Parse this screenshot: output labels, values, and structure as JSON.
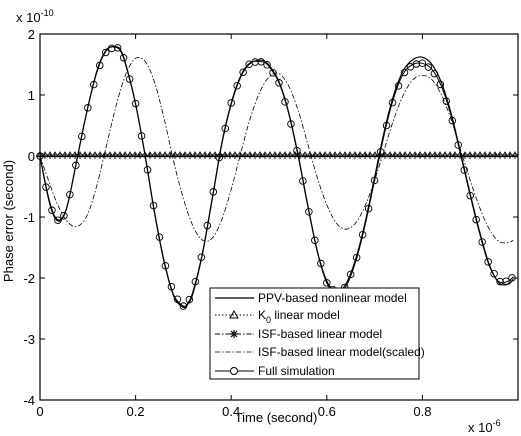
{
  "chart_data": {
    "type": "line",
    "xlabel": "Time (second)",
    "ylabel": "Phase error (second)",
    "x_exponent_label": "x 10",
    "x_exponent": "-6",
    "y_exponent_label": "x 10",
    "y_exponent": "-10",
    "xlim": [
      0,
      1.0
    ],
    "ylim": [
      -4,
      2
    ],
    "xticks": [
      0,
      0.2,
      0.4,
      0.6,
      0.8
    ],
    "xtick_labels": [
      "0",
      "0.2",
      "0.4",
      "0.6",
      "0.8"
    ],
    "yticks": [
      -4,
      -3,
      -2,
      -1,
      0,
      1,
      2
    ],
    "ytick_labels": [
      "-4",
      "-3",
      "-2",
      "-1",
      "0",
      "1",
      "2"
    ],
    "grid": false,
    "legend_position": "bottom-right",
    "series": [
      {
        "name": "PPV-based nonlinear model",
        "style": "solid",
        "x": [
          0,
          0.01,
          0.02,
          0.03,
          0.04,
          0.05,
          0.06,
          0.08,
          0.1,
          0.12,
          0.14,
          0.16,
          0.17,
          0.18,
          0.2,
          0.22,
          0.24,
          0.26,
          0.28,
          0.3,
          0.31,
          0.32,
          0.34,
          0.36,
          0.38,
          0.4,
          0.42,
          0.44,
          0.46,
          0.47,
          0.48,
          0.5,
          0.52,
          0.54,
          0.56,
          0.58,
          0.6,
          0.62,
          0.64,
          0.66,
          0.68,
          0.7,
          0.72,
          0.74,
          0.76,
          0.78,
          0.8,
          0.82,
          0.84,
          0.86,
          0.88,
          0.9,
          0.92,
          0.94,
          0.96,
          0.98,
          0.99
        ],
        "y": [
          0,
          -0.4,
          -0.75,
          -0.98,
          -1.05,
          -0.97,
          -0.72,
          0.05,
          0.8,
          1.42,
          1.75,
          1.78,
          1.7,
          1.48,
          0.85,
          0.0,
          -0.95,
          -1.75,
          -2.3,
          -2.48,
          -2.42,
          -2.25,
          -1.6,
          -0.72,
          0.18,
          0.85,
          1.3,
          1.52,
          1.57,
          1.55,
          1.48,
          1.22,
          0.72,
          0.02,
          -0.8,
          -1.55,
          -2.05,
          -2.22,
          -2.1,
          -1.7,
          -1.1,
          -0.35,
          0.4,
          1.0,
          1.4,
          1.58,
          1.62,
          1.5,
          1.2,
          0.7,
          0.05,
          -0.62,
          -1.25,
          -1.78,
          -2.08,
          -2.1,
          -2.02
        ]
      },
      {
        "name": "K0 linear model",
        "legend_label": "K",
        "legend_subscript": "0",
        "legend_suffix": " linear model",
        "style": "dotted-triangle",
        "x": [
          0,
          0.1,
          0.2,
          0.3,
          0.4,
          0.5,
          0.6,
          0.7,
          0.8,
          0.9,
          1.0
        ],
        "y": [
          0.02,
          0.02,
          0.02,
          0.02,
          0.02,
          0.02,
          0.02,
          0.02,
          0.02,
          0.02,
          0.02
        ]
      },
      {
        "name": "ISF-based linear model",
        "style": "dashdot-star",
        "x": [
          0,
          0.1,
          0.2,
          0.3,
          0.4,
          0.5,
          0.6,
          0.7,
          0.8,
          0.9,
          1.0
        ],
        "y": [
          0.0,
          0.0,
          0.0,
          0.0,
          0.0,
          0.0,
          0.0,
          0.0,
          0.0,
          0.0,
          0.0
        ]
      },
      {
        "name": "ISF-based linear model(scaled)",
        "style": "dashdot",
        "x": [
          0,
          0.02,
          0.04,
          0.06,
          0.08,
          0.1,
          0.12,
          0.14,
          0.16,
          0.18,
          0.2,
          0.22,
          0.24,
          0.26,
          0.28,
          0.3,
          0.32,
          0.34,
          0.36,
          0.38,
          0.4,
          0.42,
          0.44,
          0.46,
          0.48,
          0.5,
          0.52,
          0.54,
          0.56,
          0.58,
          0.6,
          0.62,
          0.64,
          0.66,
          0.68,
          0.7,
          0.72,
          0.74,
          0.76,
          0.78,
          0.8,
          0.82,
          0.84,
          0.86,
          0.88,
          0.9,
          0.92,
          0.94,
          0.96,
          0.98,
          0.99
        ],
        "y": [
          0,
          -0.45,
          -0.85,
          -1.1,
          -1.15,
          -0.95,
          -0.45,
          0.2,
          0.85,
          1.35,
          1.6,
          1.55,
          1.2,
          0.6,
          -0.1,
          -0.7,
          -1.15,
          -1.38,
          -1.35,
          -1.05,
          -0.55,
          0.05,
          0.62,
          1.05,
          1.3,
          1.35,
          1.15,
          0.75,
          0.2,
          -0.35,
          -0.8,
          -1.1,
          -1.2,
          -1.1,
          -0.82,
          -0.4,
          0.1,
          0.6,
          1.0,
          1.25,
          1.32,
          1.25,
          1.0,
          0.6,
          0.1,
          -0.4,
          -0.85,
          -1.2,
          -1.4,
          -1.42,
          -1.38
        ]
      },
      {
        "name": "Full simulation",
        "style": "solid-circle",
        "x": [
          0,
          0.01,
          0.02,
          0.03,
          0.04,
          0.05,
          0.06,
          0.08,
          0.1,
          0.12,
          0.14,
          0.16,
          0.17,
          0.18,
          0.2,
          0.22,
          0.24,
          0.26,
          0.28,
          0.3,
          0.31,
          0.32,
          0.34,
          0.36,
          0.38,
          0.4,
          0.42,
          0.44,
          0.46,
          0.47,
          0.48,
          0.5,
          0.52,
          0.54,
          0.56,
          0.58,
          0.6,
          0.62,
          0.64,
          0.66,
          0.68,
          0.7,
          0.72,
          0.74,
          0.76,
          0.78,
          0.8,
          0.82,
          0.84,
          0.86,
          0.88,
          0.9,
          0.92,
          0.94,
          0.96,
          0.98,
          0.99
        ],
        "y": [
          0,
          -0.42,
          -0.78,
          -1.0,
          -1.07,
          -0.98,
          -0.73,
          0.04,
          0.79,
          1.4,
          1.74,
          1.79,
          1.72,
          1.5,
          0.86,
          0.01,
          -0.93,
          -1.73,
          -2.28,
          -2.46,
          -2.4,
          -2.22,
          -1.58,
          -0.7,
          0.2,
          0.87,
          1.32,
          1.53,
          1.55,
          1.53,
          1.46,
          1.2,
          0.7,
          0.0,
          -0.82,
          -1.57,
          -2.08,
          -2.26,
          -2.14,
          -1.74,
          -1.14,
          -0.4,
          0.35,
          0.95,
          1.35,
          1.5,
          1.52,
          1.42,
          1.14,
          0.66,
          0.02,
          -0.65,
          -1.28,
          -1.8,
          -2.06,
          -2.05,
          -1.98
        ]
      }
    ]
  },
  "colors": {
    "axis": "#000000",
    "line": "#000000",
    "background": "#ffffff"
  }
}
